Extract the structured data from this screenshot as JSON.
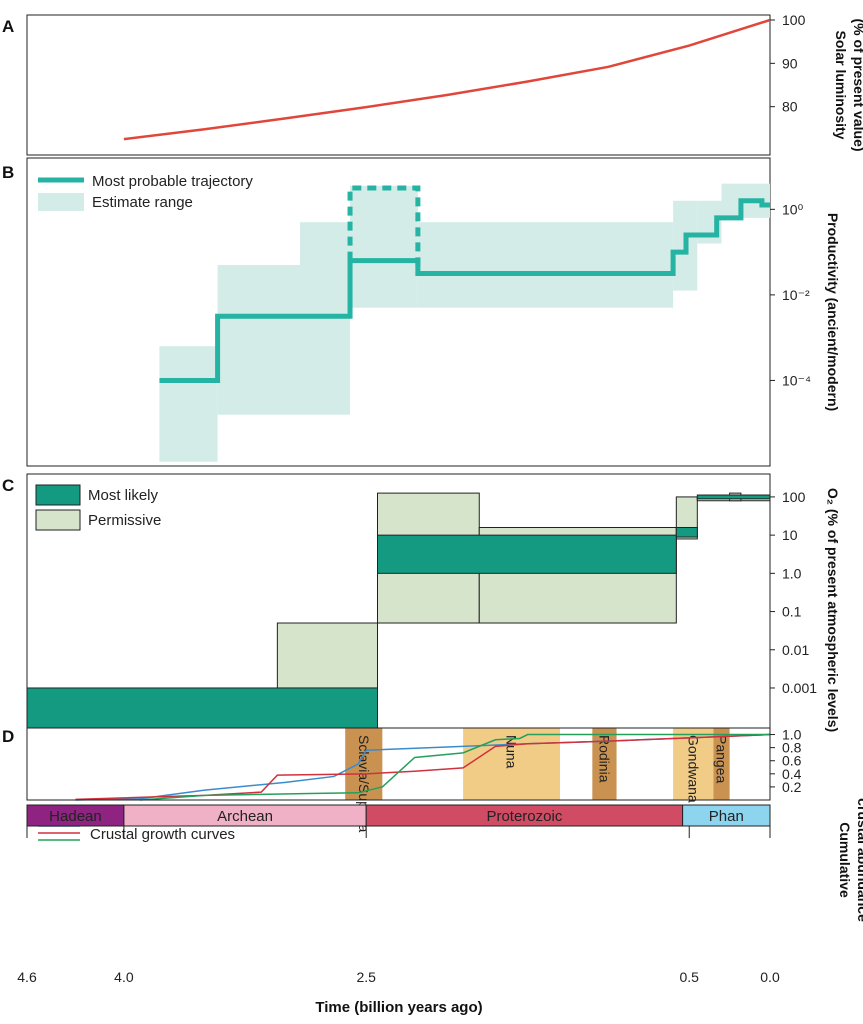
{
  "colors": {
    "luminosity": "#e0473a",
    "trajectory": "#25b3a3",
    "estimate_range": "#d4ece7",
    "o2_most_likely": "#149a80",
    "o2_permissive": "#d6e4cc",
    "curve_blue": "#3a8ccc",
    "curve_red": "#d0313f",
    "curve_green": "#25a05a",
    "supercontinent_light": "#f1cc86",
    "supercontinent_dark": "#c99251",
    "hadean": "#8e2381",
    "archean": "#f0b0c6",
    "proterozoic": "#d04b64",
    "phanerozoic": "#8dd5ee"
  },
  "chart_data": [
    {
      "panel": "A",
      "type": "line",
      "ylabel": [
        "Solar luminosity",
        "(% of present value)"
      ],
      "yticks": [
        "100",
        "90",
        "80"
      ],
      "ytick_values": [
        100,
        90,
        80
      ],
      "ylim": [
        70,
        100
      ],
      "x": [
        4.0,
        3.5,
        3.0,
        2.5,
        2.0,
        1.5,
        1.0,
        0.5,
        0.0
      ],
      "y": [
        72.5,
        74.8,
        77.3,
        79.9,
        82.7,
        85.8,
        89.2,
        94.1,
        100
      ]
    },
    {
      "panel": "B",
      "type": "line",
      "ylabel": "Productivity (ancient/modern)",
      "yticks": [
        "10⁰",
        "10⁻²",
        "10⁻⁴"
      ],
      "ytick_values": [
        0,
        -2,
        -4
      ],
      "log_scale": true,
      "ylim_log10": [
        -6.0,
        1.2
      ],
      "legend": [
        "Most probable trajectory",
        "Estimate range"
      ],
      "trajectory_log10": [
        {
          "x0": 3.78,
          "x1": 3.42,
          "y": -4.0
        },
        {
          "x0": 3.42,
          "x1": 2.6,
          "y": -2.5
        },
        {
          "x0": 2.6,
          "x1": 2.18,
          "y": -1.2
        },
        {
          "x0": 2.18,
          "x1": 0.6,
          "y": -1.5
        },
        {
          "x0": 0.6,
          "x1": 0.52,
          "y": -1.0
        },
        {
          "x0": 0.52,
          "x1": 0.33,
          "y": -0.6
        },
        {
          "x0": 0.33,
          "x1": 0.18,
          "y": -0.2
        },
        {
          "x0": 0.18,
          "x1": 0.05,
          "y": 0.2
        },
        {
          "x0": 0.05,
          "x1": 0.0,
          "y": 0.1
        }
      ],
      "dashed_excursion_log10": {
        "x0": 2.6,
        "x1": 2.18,
        "y": 0.5
      },
      "estimate_range_log10": [
        {
          "x0": 3.78,
          "x1": 3.42,
          "lo": -5.9,
          "hi": -3.2
        },
        {
          "x0": 3.42,
          "x1": 2.91,
          "lo": -4.8,
          "hi": -1.3
        },
        {
          "x0": 2.91,
          "x1": 2.6,
          "lo": -4.8,
          "hi": -0.3
        },
        {
          "x0": 2.6,
          "x1": 2.18,
          "lo": -2.3,
          "hi": 0.55
        },
        {
          "x0": 2.18,
          "x1": 0.6,
          "lo": -2.3,
          "hi": -0.3
        },
        {
          "x0": 0.6,
          "x1": 0.45,
          "lo": -1.9,
          "hi": 0.2
        },
        {
          "x0": 0.45,
          "x1": 0.3,
          "lo": -0.8,
          "hi": 0.2
        },
        {
          "x0": 0.3,
          "x1": 0.0,
          "lo": -0.2,
          "hi": 0.6
        }
      ]
    },
    {
      "panel": "C",
      "type": "bar",
      "ylabel": "O₂ (% of present atmospheric levels)",
      "yticks": [
        "100",
        "10",
        "1.0",
        "0.1",
        "0.01",
        "0.001"
      ],
      "ytick_values": [
        2,
        1,
        0,
        -1,
        -2,
        -3
      ],
      "log_scale": true,
      "ylim_log10": [
        -4.1,
        2.6
      ],
      "legend": [
        "Most likely",
        "Permissive"
      ],
      "permissive_log10": [
        {
          "x0": 3.05,
          "x1": 2.43,
          "lo": -3.0,
          "hi": -1.3
        },
        {
          "x0": 2.43,
          "x1": 1.8,
          "lo": -1.3,
          "hi": 2.1
        },
        {
          "x0": 1.8,
          "x1": 0.58,
          "lo": -1.3,
          "hi": 1.2
        },
        {
          "x0": 0.58,
          "x1": 0.45,
          "lo": 0.9,
          "hi": 2.0
        },
        {
          "x0": 0.45,
          "x1": 0.0,
          "lo": 1.9,
          "hi": 2.0
        },
        {
          "x0": 0.25,
          "x1": 0.18,
          "lo": 1.9,
          "hi": 2.1
        }
      ],
      "most_likely_log10": [
        {
          "x0": 4.6,
          "x1": 2.43,
          "lo": -4.1,
          "hi": -3.0
        },
        {
          "x0": 2.43,
          "x1": 0.58,
          "lo": 0.0,
          "hi": 1.0
        },
        {
          "x0": 0.58,
          "x1": 0.45,
          "lo": 0.95,
          "hi": 1.2
        },
        {
          "x0": 0.45,
          "x1": 0.0,
          "lo": 1.95,
          "hi": 2.05
        }
      ]
    },
    {
      "panel": "D",
      "type": "line",
      "ylabel": [
        "Cumulative",
        "crustal abundance"
      ],
      "yticks": [
        "1.0",
        "0.8",
        "0.6",
        "0.4",
        "0.2"
      ],
      "ytick_values": [
        1.0,
        0.8,
        0.6,
        0.4,
        0.2
      ],
      "ylim": [
        0,
        1.1
      ],
      "legend": [
        "Crustal growth curves"
      ],
      "series": [
        {
          "color_key": "curve_blue",
          "x": [
            4.3,
            3.9,
            3.5,
            3.0,
            2.7,
            2.55,
            2.5,
            2.0,
            1.5,
            1.0,
            0.5,
            0.0
          ],
          "y": [
            0.0,
            0.02,
            0.15,
            0.27,
            0.36,
            0.55,
            0.76,
            0.81,
            0.86,
            0.9,
            0.95,
            1.0
          ]
        },
        {
          "color_key": "curve_red",
          "x": [
            4.3,
            3.5,
            3.15,
            3.05,
            2.5,
            2.2,
            1.9,
            1.7,
            1.5,
            1.0,
            0.5,
            0.0
          ],
          "y": [
            0.01,
            0.07,
            0.12,
            0.38,
            0.4,
            0.44,
            0.49,
            0.82,
            0.86,
            0.9,
            0.95,
            1.0
          ]
        },
        {
          "color_key": "curve_green",
          "x": [
            3.9,
            3.5,
            2.85,
            2.55,
            2.4,
            2.2,
            1.9,
            1.7,
            1.55,
            1.5,
            1.0,
            0.5,
            0.0
          ],
          "y": [
            0.0,
            0.07,
            0.1,
            0.11,
            0.2,
            0.65,
            0.72,
            0.92,
            0.94,
            1.0,
            1.0,
            1.0,
            1.0
          ]
        }
      ],
      "supercontinents": [
        {
          "label": "Sclavia/Superia",
          "x0": 2.63,
          "x1": 2.4,
          "tone": "dark"
        },
        {
          "label": "Nuna",
          "x0": 1.9,
          "x1": 1.3,
          "tone": "light"
        },
        {
          "label": "Rodinia",
          "x0": 1.1,
          "x1": 0.95,
          "tone": "dark"
        },
        {
          "label": "Gondwana",
          "x0": 0.6,
          "x1": 0.35,
          "tone": "light"
        },
        {
          "label": "Pangea",
          "x0": 0.35,
          "x1": 0.25,
          "tone": "dark"
        }
      ]
    }
  ],
  "eons": [
    {
      "label": "Hadean",
      "x0": 4.6,
      "x1": 4.0,
      "color_key": "hadean"
    },
    {
      "label": "Archean",
      "x0": 4.0,
      "x1": 2.5,
      "color_key": "archean"
    },
    {
      "label": "Proterozoic",
      "x0": 2.5,
      "x1": 0.541,
      "color_key": "proterozoic"
    },
    {
      "label": "Phan",
      "x0": 0.541,
      "x1": 0.0,
      "color_key": "phanerozoic"
    }
  ],
  "x_axis": {
    "label": "Time (billion years ago)",
    "ticks": [
      "4.6",
      "4.0",
      "2.5",
      "0.5",
      "0.0"
    ],
    "tick_values": [
      4.6,
      4.0,
      2.5,
      0.5,
      0.0
    ],
    "xlim": [
      4.6,
      0.0
    ]
  },
  "panel_letters": [
    "A",
    "B",
    "C",
    "D"
  ]
}
